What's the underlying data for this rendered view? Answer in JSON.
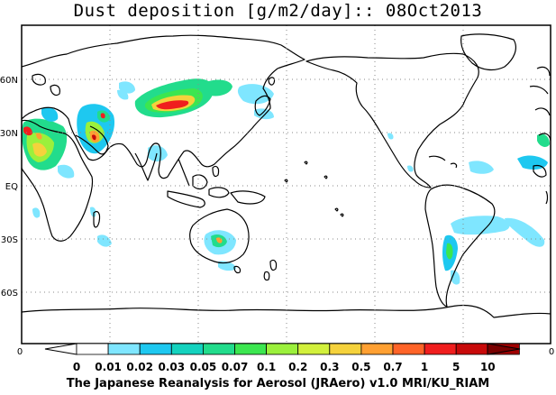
{
  "title": "Dust deposition [g/m2/day]:: 08Oct2013",
  "footer": "The Japanese Reanalysis for Aerosol (JRAero) v1.0 MRI/KU_RIAM",
  "lat_labels": [
    "60N",
    "30N",
    "EQ",
    "30S",
    "60S"
  ],
  "colorbar": {
    "left_end_label": "0",
    "right_end_label": "0",
    "ticks": [
      "0",
      "0.01",
      "0.02",
      "0.03",
      "0.05",
      "0.07",
      "0.1",
      "0.2",
      "0.3",
      "0.5",
      "0.7",
      "1",
      "5",
      "10"
    ],
    "colors": [
      "#ffffff",
      "#7fe6ff",
      "#1ec8f0",
      "#14d2be",
      "#22dc8c",
      "#3ce650",
      "#9bf03c",
      "#d2f03c",
      "#f5d23c",
      "#ffa032",
      "#ff6428",
      "#f01e1e",
      "#c80a0a",
      "#a00000",
      "#7a0000"
    ]
  },
  "map": {
    "lon_range": [
      -180,
      180
    ],
    "lat_range": [
      -90,
      90
    ],
    "center_lon": 180,
    "projection": "equirectangular",
    "gridlines": "dotted"
  }
}
